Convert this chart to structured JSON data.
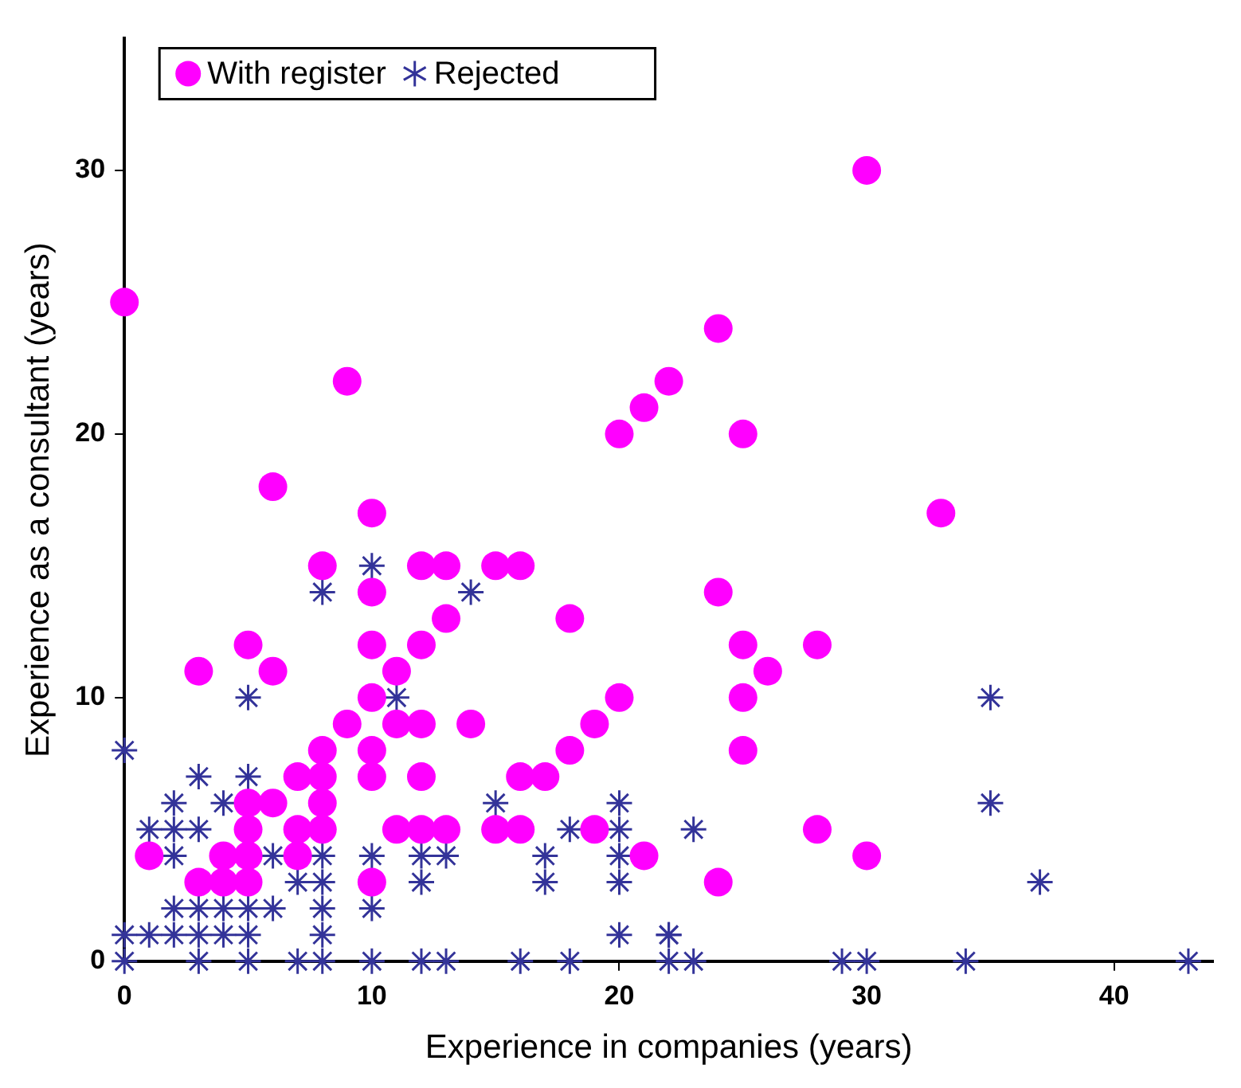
{
  "chart_data": {
    "type": "scatter",
    "xlabel": "Experience in companies (years)",
    "ylabel": "Experience as a consultant (years)",
    "xlim": [
      0,
      44
    ],
    "ylim": [
      0,
      35
    ],
    "xticks": [
      0,
      10,
      20,
      30,
      40
    ],
    "yticks": [
      0,
      10,
      20,
      30
    ],
    "grid": false,
    "legend": "top left",
    "series": [
      {
        "name": "With register",
        "color": "#ff00ff",
        "marker": "circle",
        "x": [
          0,
          1,
          3,
          3,
          4,
          4,
          5,
          5,
          5,
          5,
          5,
          6,
          6,
          6,
          7,
          7,
          7,
          8,
          8,
          8,
          8,
          8,
          9,
          9,
          10,
          10,
          10,
          10,
          10,
          10,
          10,
          11,
          11,
          11,
          12,
          12,
          12,
          12,
          12,
          13,
          13,
          13,
          14,
          15,
          15,
          16,
          16,
          16,
          17,
          18,
          18,
          19,
          19,
          20,
          20,
          21,
          21,
          22,
          24,
          24,
          24,
          25,
          25,
          25,
          25,
          26,
          28,
          28,
          30,
          30,
          33
        ],
        "values": [
          25,
          4,
          11,
          3,
          3,
          4,
          12,
          6,
          5,
          4,
          3,
          18,
          11,
          6,
          7,
          5,
          4,
          15,
          8,
          7,
          6,
          5,
          22,
          9,
          17,
          14,
          12,
          10,
          8,
          7,
          3,
          11,
          9,
          5,
          15,
          12,
          9,
          7,
          5,
          15,
          13,
          5,
          9,
          15,
          5,
          15,
          7,
          5,
          7,
          13,
          8,
          9,
          5,
          20,
          10,
          21,
          4,
          22,
          24,
          14,
          3,
          20,
          12,
          10,
          8,
          11,
          12,
          5,
          30,
          4,
          17
        ]
      },
      {
        "name": "Rejected",
        "color": "#333399",
        "marker": "cross",
        "x": [
          0,
          0,
          0,
          1,
          1,
          2,
          2,
          2,
          2,
          2,
          3,
          3,
          3,
          3,
          3,
          4,
          4,
          4,
          5,
          5,
          5,
          5,
          5,
          6,
          6,
          7,
          7,
          8,
          8,
          8,
          8,
          8,
          8,
          10,
          10,
          10,
          10,
          11,
          12,
          12,
          12,
          13,
          13,
          14,
          15,
          16,
          17,
          17,
          18,
          18,
          20,
          20,
          20,
          20,
          20,
          22,
          22,
          22,
          23,
          23,
          29,
          30,
          34,
          35,
          35,
          37,
          43
        ],
        "values": [
          8,
          1,
          0,
          5,
          1,
          6,
          5,
          4,
          2,
          1,
          7,
          5,
          2,
          1,
          0,
          6,
          2,
          1,
          10,
          7,
          2,
          1,
          0,
          4,
          2,
          3,
          0,
          14,
          4,
          3,
          2,
          1,
          0,
          15,
          4,
          2,
          0,
          10,
          4,
          3,
          0,
          4,
          0,
          14,
          6,
          0,
          4,
          3,
          5,
          0,
          6,
          5,
          4,
          3,
          1,
          1,
          0,
          1,
          5,
          0,
          0,
          0,
          0,
          10,
          6,
          3,
          0
        ]
      }
    ]
  }
}
